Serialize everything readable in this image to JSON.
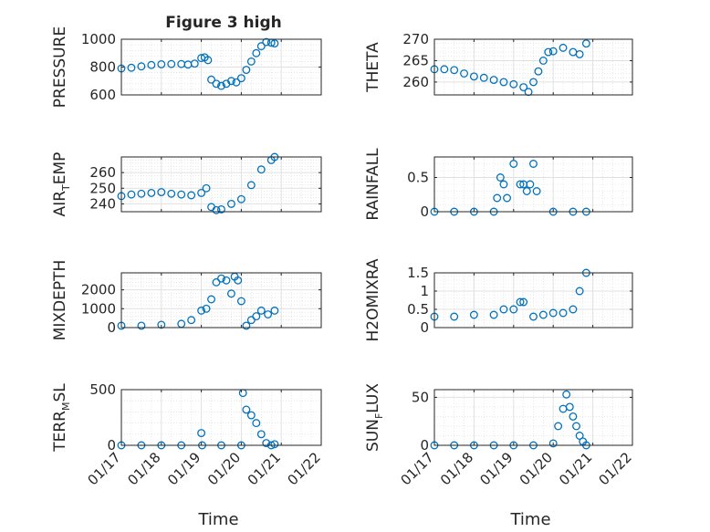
{
  "figure_title": "Figure 3 high",
  "chart_data": [
    {
      "type": "scatter",
      "ylabel": "PRESSURE",
      "xlim": [
        "01/17",
        "01/19"
      ],
      "x": [
        "01/17 00:00",
        "01/17 06:00",
        "01/17 12:00",
        "01/17 18:00",
        "01/18 00:00",
        "01/18 06:00",
        "01/18 12:00",
        "01/18 16:00",
        "01/18 20:00",
        "01/19 00:00",
        "01/19 02:00",
        "01/19 04:00",
        "01/19 06:00",
        "01/19 09:00",
        "01/19 12:00",
        "01/19 15:00",
        "01/19 18:00",
        "01/19 21:00",
        "01/20 00:00",
        "01/20 03:00",
        "01/20 06:00",
        "01/20 09:00",
        "01/20 12:00",
        "01/20 15:00",
        "01/20 18:00",
        "01/20 20:00"
      ],
      "y": [
        790,
        795,
        805,
        815,
        820,
        822,
        822,
        818,
        825,
        865,
        870,
        850,
        710,
        680,
        665,
        680,
        700,
        690,
        720,
        780,
        840,
        900,
        950,
        980,
        975,
        970
      ],
      "yticks": [
        600,
        800,
        1000
      ],
      "ylim": [
        600,
        1000
      ],
      "color": "#0072BD",
      "grid": true
    },
    {
      "type": "scatter",
      "ylabel": "THETA",
      "x": [
        "01/17 00:00",
        "01/17 06:00",
        "01/17 12:00",
        "01/17 18:00",
        "01/18 00:00",
        "01/18 06:00",
        "01/18 12:00",
        "01/18 18:00",
        "01/19 00:00",
        "01/19 06:00",
        "01/19 09:00",
        "01/19 12:00",
        "01/19 15:00",
        "01/19 18:00",
        "01/19 21:00",
        "01/20 00:00",
        "01/20 06:00",
        "01/20 12:00",
        "01/20 16:00",
        "01/20 20:00"
      ],
      "y": [
        263,
        263,
        262.8,
        262,
        261.3,
        261,
        260.5,
        260,
        259.5,
        258.8,
        257.7,
        260,
        262.5,
        265,
        267,
        267.2,
        268,
        267,
        266.5,
        269
      ],
      "yticks": [
        260,
        265,
        270
      ],
      "ylim": [
        257,
        270
      ],
      "color": "#0072BD",
      "grid": true
    },
    {
      "type": "scatter",
      "ylabel_main": "AIR",
      "ylabel_sub": "T",
      "ylabel_rest": "EMP",
      "x": [
        "01/17 00:00",
        "01/17 06:00",
        "01/17 12:00",
        "01/17 18:00",
        "01/18 00:00",
        "01/18 06:00",
        "01/18 12:00",
        "01/18 18:00",
        "01/19 00:00",
        "01/19 03:00",
        "01/19 06:00",
        "01/19 09:00",
        "01/19 12:00",
        "01/19 18:00",
        "01/20 00:00",
        "01/20 06:00",
        "01/20 12:00",
        "01/20 18:00",
        "01/20 20:00"
      ],
      "y": [
        245,
        246,
        246.5,
        247,
        247.5,
        246.5,
        246,
        245.5,
        247,
        250,
        238,
        236,
        236.5,
        240,
        243,
        252,
        262,
        268,
        270
      ],
      "yticks": [
        240,
        250,
        260
      ],
      "ylim": [
        235,
        270
      ],
      "color": "#0072BD",
      "grid": true
    },
    {
      "type": "scatter",
      "ylabel": "RAINFALL",
      "x": [
        "01/17 00:00",
        "01/17 12:00",
        "01/18 00:00",
        "01/18 12:00",
        "01/18 14:00",
        "01/18 16:00",
        "01/18 18:00",
        "01/18 20:00",
        "01/19 00:00",
        "01/19 04:00",
        "01/19 06:00",
        "01/19 08:00",
        "01/19 10:00",
        "01/19 12:00",
        "01/19 14:00",
        "01/20 00:00",
        "01/20 12:00",
        "01/20 20:00"
      ],
      "y": [
        0,
        0,
        0,
        0,
        0.2,
        0.5,
        0.4,
        0.2,
        0.7,
        0.4,
        0.4,
        0.3,
        0.4,
        0.7,
        0.3,
        0,
        0,
        0
      ],
      "yticks": [
        0,
        0.5
      ],
      "ylim": [
        0,
        0.8
      ],
      "color": "#0072BD",
      "grid": true
    },
    {
      "type": "scatter",
      "ylabel": "MIXDEPTH",
      "x": [
        "01/17 00:00",
        "01/17 12:00",
        "01/18 00:00",
        "01/18 12:00",
        "01/18 18:00",
        "01/19 00:00",
        "01/19 03:00",
        "01/19 06:00",
        "01/19 09:00",
        "01/19 12:00",
        "01/19 15:00",
        "01/19 18:00",
        "01/19 20:00",
        "01/19 22:00",
        "01/20 00:00",
        "01/20 03:00",
        "01/20 06:00",
        "01/20 09:00",
        "01/20 12:00",
        "01/20 16:00",
        "01/20 20:00"
      ],
      "y": [
        100,
        100,
        150,
        200,
        400,
        900,
        1000,
        1500,
        2400,
        2600,
        2500,
        1800,
        2700,
        2500,
        1400,
        100,
        400,
        600,
        900,
        700,
        900
      ],
      "yticks": [
        0,
        1000,
        2000
      ],
      "ylim": [
        0,
        2900
      ],
      "color": "#0072BD",
      "grid": true
    },
    {
      "type": "scatter",
      "ylabel": "H2OMIXRA",
      "x": [
        "01/17 00:00",
        "01/17 12:00",
        "01/18 00:00",
        "01/18 12:00",
        "01/18 18:00",
        "01/19 00:00",
        "01/19 04:00",
        "01/19 06:00",
        "01/19 12:00",
        "01/19 18:00",
        "01/20 00:00",
        "01/20 06:00",
        "01/20 12:00",
        "01/20 16:00",
        "01/20 20:00"
      ],
      "y": [
        0.3,
        0.3,
        0.35,
        0.35,
        0.5,
        0.5,
        0.7,
        0.7,
        0.3,
        0.35,
        0.4,
        0.4,
        0.5,
        1.0,
        1.5
      ],
      "yticks": [
        0,
        0.5,
        1,
        1.5
      ],
      "ylim": [
        0,
        1.5
      ],
      "color": "#0072BD",
      "grid": true
    },
    {
      "type": "scatter",
      "ylabel_main": "TERR",
      "ylabel_sub": "M",
      "ylabel_rest": "SL",
      "xticks": [
        "01/17",
        "01/18",
        "01/19",
        "01/20",
        "01/21",
        "01/22"
      ],
      "xlabel": "Time",
      "x": [
        "01/17 00:00",
        "01/17 12:00",
        "01/18 00:00",
        "01/18 12:00",
        "01/19 00:00",
        "01/19 00:30",
        "01/19 12:00",
        "01/20 00:00",
        "01/20 01:00",
        "01/20 03:00",
        "01/20 06:00",
        "01/20 09:00",
        "01/20 12:00",
        "01/20 15:00",
        "01/20 18:00",
        "01/20 20:00"
      ],
      "y": [
        0,
        0,
        0,
        0,
        110,
        0,
        0,
        0,
        470,
        320,
        270,
        200,
        100,
        20,
        0,
        10
      ],
      "yticks": [
        0,
        500
      ],
      "ylim": [
        0,
        500
      ],
      "color": "#0072BD",
      "grid": true
    },
    {
      "type": "scatter",
      "ylabel_main": "SUN",
      "ylabel_sub": "F",
      "ylabel_rest": "LUX",
      "xticks": [
        "01/17",
        "01/18",
        "01/19",
        "01/20",
        "01/21",
        "01/22"
      ],
      "xlabel": "Time",
      "x": [
        "01/17 00:00",
        "01/17 12:00",
        "01/18 00:00",
        "01/18 12:00",
        "01/19 00:00",
        "01/19 12:00",
        "01/20 00:00",
        "01/20 03:00",
        "01/20 06:00",
        "01/20 08:00",
        "01/20 10:00",
        "01/20 12:00",
        "01/20 14:00",
        "01/20 16:00",
        "01/20 18:00",
        "01/20 20:00"
      ],
      "y": [
        0,
        0,
        0,
        0,
        0,
        0,
        2,
        20,
        38,
        53,
        40,
        30,
        20,
        10,
        4,
        0
      ],
      "yticks": [
        0,
        50
      ],
      "ylim": [
        0,
        58
      ],
      "color": "#0072BD",
      "grid": true
    }
  ]
}
